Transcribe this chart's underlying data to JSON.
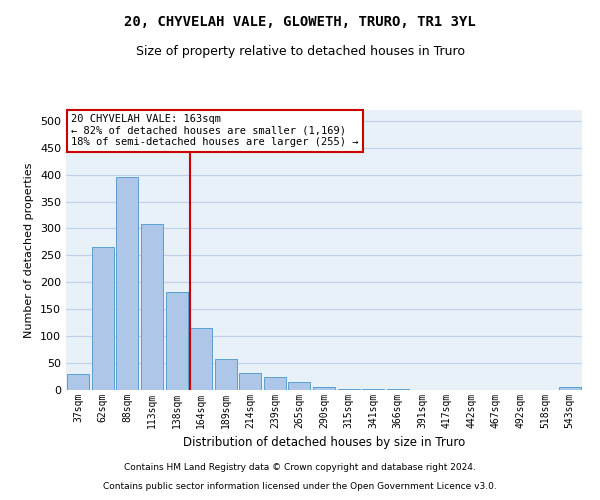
{
  "title": "20, CHYVELAH VALE, GLOWETH, TRURO, TR1 3YL",
  "subtitle": "Size of property relative to detached houses in Truro",
  "xlabel": "Distribution of detached houses by size in Truro",
  "ylabel": "Number of detached properties",
  "footer_line1": "Contains HM Land Registry data © Crown copyright and database right 2024.",
  "footer_line2": "Contains public sector information licensed under the Open Government Licence v3.0.",
  "categories": [
    "37sqm",
    "62sqm",
    "88sqm",
    "113sqm",
    "138sqm",
    "164sqm",
    "189sqm",
    "214sqm",
    "239sqm",
    "265sqm",
    "290sqm",
    "315sqm",
    "341sqm",
    "366sqm",
    "391sqm",
    "417sqm",
    "442sqm",
    "467sqm",
    "492sqm",
    "518sqm",
    "543sqm"
  ],
  "values": [
    30,
    265,
    395,
    308,
    182,
    115,
    58,
    32,
    25,
    14,
    6,
    2,
    1,
    1,
    0,
    0,
    0,
    0,
    0,
    0,
    5
  ],
  "bar_color": "#aec6e8",
  "bar_edge_color": "#5a9fd4",
  "annotation_line1": "20 CHYVELAH VALE: 163sqm",
  "annotation_line2": "← 82% of detached houses are smaller (1,169)",
  "annotation_line3": "18% of semi-detached houses are larger (255) →",
  "vline_color": "#cc0000",
  "annotation_box_color": "#ffffff",
  "annotation_box_edge_color": "#cc0000",
  "ylim": [
    0,
    520
  ],
  "yticks": [
    0,
    50,
    100,
    150,
    200,
    250,
    300,
    350,
    400,
    450,
    500
  ],
  "grid_color": "#c0d0e8",
  "bg_color": "#e8f0f8",
  "title_fontsize": 10,
  "subtitle_fontsize": 9
}
